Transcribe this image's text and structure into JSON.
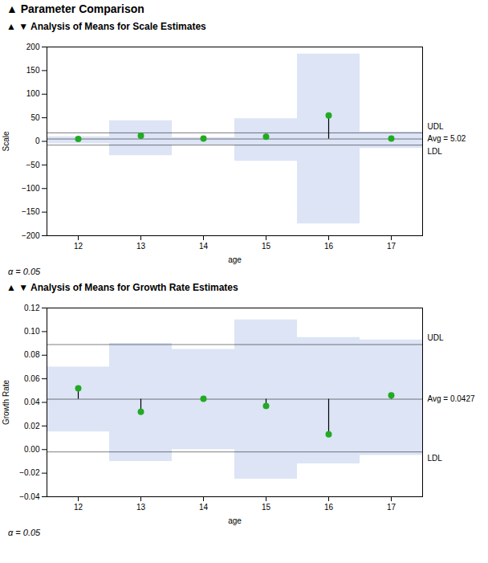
{
  "title": "▲ Parameter Comparison",
  "chart_data": [
    {
      "type": "anom",
      "title": "▲ ▼ Analysis of Means for Scale Estimates",
      "xlabel": "age",
      "ylabel": "Scale",
      "note": "α = 0.05",
      "x": [
        12,
        13,
        14,
        15,
        16,
        17
      ],
      "values": [
        5,
        12,
        6,
        10,
        55,
        6
      ],
      "color": "#22aa22",
      "xlim": [
        11.5,
        17.5
      ],
      "xticks": [
        12,
        13,
        14,
        15,
        16,
        17
      ],
      "ylim": [
        -200,
        200
      ],
      "yticks": [
        -200,
        -150,
        -100,
        -50,
        0,
        50,
        100,
        150,
        200
      ],
      "avg": 5.02,
      "avg_label": "Avg = 5.02",
      "udl": 18.0,
      "udl_label": "UDL",
      "ldl": -8.0,
      "ldl_label": "LDL",
      "band": {
        "color": "#dce4f5",
        "x": [
          11.5,
          12.5,
          12.5,
          13.5,
          13.5,
          14.5,
          14.5,
          15.5,
          15.5,
          16.5,
          16.5,
          17.5,
          17.5
        ],
        "upper": [
          10,
          10,
          44,
          44,
          8,
          8,
          48,
          48,
          185,
          185,
          20,
          20,
          10
        ],
        "lower": [
          -5,
          -5,
          -30,
          -30,
          -8,
          -8,
          -42,
          -42,
          -175,
          -175,
          -15,
          -15,
          -5
        ]
      }
    },
    {
      "type": "anom",
      "title": "▲ ▼ Analysis of Means for Growth Rate Estimates",
      "xlabel": "age",
      "ylabel": "Growth Rate",
      "note": "α = 0.05",
      "x": [
        12,
        13,
        14,
        15,
        16,
        17
      ],
      "values": [
        0.052,
        0.032,
        0.043,
        0.037,
        0.013,
        0.046
      ],
      "color": "#22aa22",
      "xlim": [
        11.5,
        17.5
      ],
      "xticks": [
        12,
        13,
        14,
        15,
        16,
        17
      ],
      "ylim": [
        -0.04,
        0.12
      ],
      "yticks": [
        {
          "value": -0.04,
          "label": "−0.04"
        },
        {
          "value": -0.02,
          "label": "−0.02"
        },
        {
          "value": 0.0,
          "label": "0.00"
        },
        {
          "value": 0.02,
          "label": "0.02"
        },
        {
          "value": 0.04,
          "label": "0.04"
        },
        {
          "value": 0.06,
          "label": "0.06"
        },
        {
          "value": 0.08,
          "label": "0.08"
        },
        {
          "value": 0.1,
          "label": "0.10"
        },
        {
          "value": 0.12,
          "label": "0.12"
        }
      ],
      "avg": 0.0427,
      "avg_label": "Avg = 0.0427",
      "udl": 0.089,
      "udl_label": "UDL",
      "ldl": -0.002,
      "ldl_label": "LDL",
      "band": {
        "color": "#dce4f5",
        "x": [
          11.5,
          12.5,
          12.5,
          13.5,
          13.5,
          14.5,
          14.5,
          15.5,
          15.5,
          16.5,
          16.5,
          17.5,
          17.5
        ],
        "upper": [
          0.07,
          0.07,
          0.09,
          0.09,
          0.085,
          0.085,
          0.11,
          0.11,
          0.095,
          0.095,
          0.093,
          0.093,
          0.07
        ],
        "lower": [
          0.015,
          0.015,
          -0.01,
          -0.01,
          0.0,
          0.0,
          -0.025,
          -0.025,
          -0.012,
          -0.012,
          -0.005,
          -0.005,
          0.015
        ]
      }
    }
  ]
}
